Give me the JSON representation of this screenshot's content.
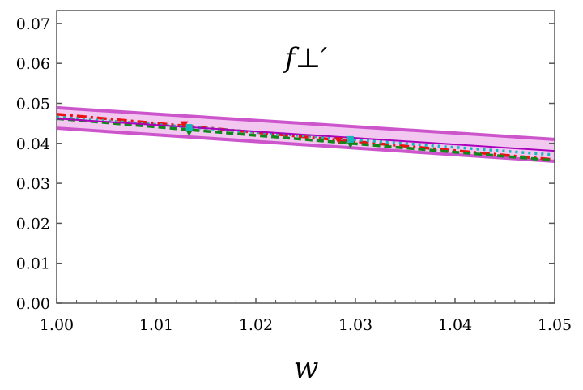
{
  "chart_data": {
    "type": "line",
    "title": "f⊥′",
    "xlabel": "w",
    "ylabel": "",
    "xlim": [
      1.0,
      1.05
    ],
    "ylim": [
      0.0,
      0.073
    ],
    "xticks": [
      "1.00",
      "1.01",
      "1.02",
      "1.03",
      "1.04",
      "1.05"
    ],
    "yticks": [
      "0.00",
      "0.01",
      "0.02",
      "0.03",
      "0.04",
      "0.05",
      "0.06",
      "0.07"
    ],
    "band": {
      "name": "fit band",
      "x": [
        1.0,
        1.05
      ],
      "upper": [
        0.0489,
        0.041
      ],
      "lower": [
        0.0438,
        0.0355
      ],
      "center": [
        0.0462,
        0.0381
      ],
      "color": "#cc55cc",
      "fill": "#f2c8f0"
    },
    "series": [
      {
        "name": "red dash-dot",
        "style": "dashdot",
        "color": "#ee1111",
        "x": [
          1.0,
          1.05
        ],
        "y": [
          0.0473,
          0.0359
        ]
      },
      {
        "name": "green dashed",
        "style": "dashed",
        "color": "#11881a",
        "x": [
          1.0,
          1.05
        ],
        "y": [
          0.0462,
          0.0357
        ]
      },
      {
        "name": "cyan dotted",
        "style": "dotted",
        "color": "#11bbbb",
        "x": [
          1.0,
          1.05
        ],
        "y": [
          0.0466,
          0.0371
        ]
      }
    ],
    "points": [
      {
        "name": "red triangle",
        "marker": "triangle",
        "color": "#ee1111",
        "x": [
          1.0128,
          1.0283
        ],
        "y": [
          0.0447,
          0.0407
        ],
        "err": [
          0.0008,
          0.0008
        ]
      },
      {
        "name": "green triangle",
        "marker": "triangle-down",
        "color": "#11881a",
        "x": [
          1.0133,
          1.0295
        ],
        "y": [
          0.0432,
          0.0402
        ],
        "err": [
          0.0012,
          0.0012
        ]
      },
      {
        "name": "cyan square",
        "marker": "square",
        "color": "#11bbbb",
        "x": [
          1.0133,
          1.0295
        ],
        "y": [
          0.044,
          0.041
        ],
        "err": [
          0.0004,
          0.0004
        ]
      }
    ]
  }
}
